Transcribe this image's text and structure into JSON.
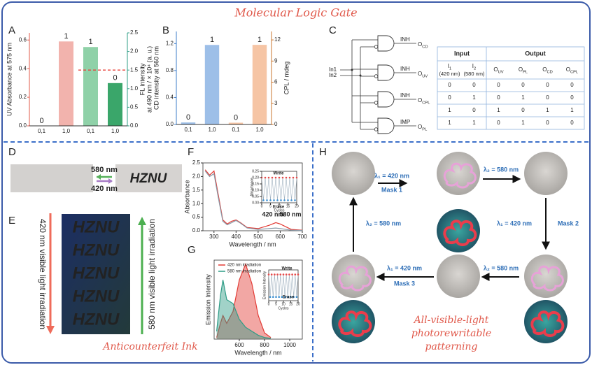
{
  "title": "Molecular Logic Gate",
  "panel_letters": [
    "A",
    "B",
    "C",
    "D",
    "E",
    "F",
    "G",
    "H"
  ],
  "chart_data": [
    {
      "panel": "A",
      "type": "bar",
      "y_label": "UV Absorbance at 575 nm",
      "y2_label": [
        "FL intensity",
        "at 490 nm / × 10⁴ (a. u.)"
      ],
      "categories": [
        "0,1",
        "1,0",
        "0,1",
        "1,0"
      ],
      "ylim": [
        0,
        0.65
      ],
      "yticks": [
        {
          "value": 0,
          "label": "0.0"
        },
        0.2,
        0.4,
        0.6
      ],
      "y2lim": [
        0,
        2.5
      ],
      "y2ticks": [
        {
          "value": 0,
          "label": "0.0"
        },
        0.5,
        {
          "value": 1,
          "label": "1.0"
        },
        1.5,
        {
          "value": 2,
          "label": "2.0"
        },
        2.5
      ],
      "series": [
        {
          "color": "#f2b3ad",
          "values": [
            0,
            0.59,
            null,
            null
          ]
        },
        {
          "axis": "y2",
          "color": "#8fd1a8",
          "values": [
            null,
            null,
            2.12,
            null
          ]
        },
        {
          "axis": "y2",
          "color": "#3aa66a",
          "values": [
            null,
            null,
            null,
            1.15
          ]
        }
      ],
      "logic_outputs": [
        "0",
        "1",
        "1",
        "0"
      ],
      "threshold": {
        "axis": "y2",
        "value": 1.5,
        "color": "#e8413a"
      },
      "y_color": "#e0584a",
      "y2_color": "#2e9c86"
    },
    {
      "panel": "B",
      "type": "bar",
      "y_label": "CD intensity at 560 nm",
      "y2_label": [
        "CPL / mdeg"
      ],
      "categories": [
        "0,1",
        "1,0",
        "0,1",
        "1,0"
      ],
      "ylim": [
        0,
        1.38
      ],
      "yticks": [
        {
          "value": 0,
          "label": "0.0"
        },
        0.4,
        0.8,
        1.2
      ],
      "y2lim": [
        0,
        13.2
      ],
      "y2ticks": [
        0,
        3,
        6,
        9,
        12
      ],
      "series": [
        {
          "color": "#9dbfe8",
          "values": [
            0.03,
            1.18,
            null,
            null
          ]
        },
        {
          "axis": "y2",
          "color": "#f6c5a5",
          "values": [
            null,
            null,
            0.25,
            11.3
          ]
        }
      ],
      "logic_outputs": [
        "0",
        "1",
        "0",
        "1"
      ],
      "y_color": "#3d7cc9",
      "y2_color": "#c8742c"
    },
    {
      "panel": "F",
      "type": "line",
      "x_label": "Wavelength / nm",
      "y_label": "Absorbance",
      "xlim": [
        250,
        700
      ],
      "xticks": [
        300,
        400,
        500,
        600,
        700
      ],
      "ylim": [
        0,
        2.5
      ],
      "yticks": [
        {
          "value": 0,
          "label": "0.0"
        },
        0.5,
        {
          "value": 1,
          "label": "1.0"
        },
        1.5,
        {
          "value": 2,
          "label": "2.0"
        },
        2.5
      ],
      "x": [
        260,
        280,
        300,
        320,
        340,
        360,
        380,
        400,
        420,
        450,
        500,
        550,
        580,
        600,
        650,
        700
      ],
      "series": [
        {
          "color": "#e23b35",
          "values": [
            2.25,
            2.05,
            2.2,
            1.3,
            0.4,
            0.25,
            0.35,
            0.4,
            0.3,
            0.12,
            0.08,
            0.2,
            0.3,
            0.25,
            0.05,
            0.02
          ]
        },
        {
          "color": "#8a9aa8",
          "values": [
            2.2,
            2.0,
            2.1,
            1.2,
            0.35,
            0.22,
            0.3,
            0.38,
            0.28,
            0.1,
            0.05,
            0.08,
            0.1,
            0.08,
            0.02,
            0.01
          ]
        }
      ],
      "annotations": [
        {
          "text": "420 nm",
          "color": "#3a6fc4"
        },
        {
          "text": "580 nm",
          "color": "#e0413a"
        }
      ]
    },
    {
      "panel": "F inset",
      "type": "line",
      "x_label": "Cycles",
      "y_label": "Absorbance",
      "xlim": [
        0,
        20
      ],
      "xticks": [
        0,
        5,
        10,
        15,
        20
      ],
      "ylim": [
        0,
        0.25
      ],
      "yticks": [
        {
          "value": 0,
          "label": "0.00"
        },
        0.05,
        {
          "value": 0.1,
          "label": "0.10"
        },
        0.15,
        {
          "value": 0.2,
          "label": "0.20"
        },
        0.25
      ],
      "x": [
        0,
        1,
        2,
        3,
        4,
        5,
        6,
        7,
        8,
        9,
        10,
        11,
        12,
        13,
        14,
        15,
        16,
        17,
        18,
        19,
        20
      ],
      "series": [
        {
          "color": "#9fb0bf",
          "marker_colors": [
            "#e84a4a",
            "#3a8fd1"
          ],
          "values": [
            0.2,
            0.02,
            0.2,
            0.02,
            0.2,
            0.02,
            0.2,
            0.02,
            0.2,
            0.02,
            0.2,
            0.02,
            0.2,
            0.02,
            0.2,
            0.02,
            0.2,
            0.02,
            0.2,
            0.02,
            0.2
          ]
        }
      ],
      "annotations": [
        {
          "text": "Write",
          "color": "#e0413a"
        },
        {
          "text": "Erase",
          "color": "#2f7fc9"
        }
      ]
    },
    {
      "panel": "G",
      "type": "line",
      "fill_area": true,
      "x_label": "Wavelength / nm",
      "y_label": "Emission Intensity",
      "xlim": [
        400,
        1100
      ],
      "xticks": [
        600,
        800,
        1000
      ],
      "ylim": [
        0,
        1
      ],
      "legend": "top-left",
      "x": [
        420,
        450,
        470,
        500,
        550,
        600,
        650,
        700,
        750,
        800,
        850
      ],
      "series": [
        {
          "name": "420 nm irradiation",
          "color": "#e23b35",
          "values": [
            0.02,
            0.2,
            0.3,
            0.2,
            0.35,
            0.75,
            0.95,
            0.7,
            0.3,
            0.08,
            0.02
          ]
        },
        {
          "name": "580 nm irradiation",
          "color": "#2e9c86",
          "values": [
            0.1,
            0.55,
            0.75,
            0.5,
            0.45,
            0.25,
            0.15,
            0.1,
            0.05,
            0.02,
            0.01
          ]
        }
      ]
    },
    {
      "panel": "G inset",
      "type": "line",
      "x_label": "Cycles",
      "y_label": "Emission Intensity",
      "xlim": [
        0,
        20
      ],
      "xticks": [
        0,
        5,
        10,
        15,
        20
      ],
      "ylim": [
        0,
        1
      ],
      "x": [
        0,
        1,
        2,
        3,
        4,
        5,
        6,
        7,
        8,
        9,
        10,
        11,
        12,
        13,
        14,
        15,
        16,
        17,
        18,
        19,
        20
      ],
      "series": [
        {
          "color": "#9fb0bf",
          "marker_colors": [
            "#e84a4a",
            "#3a8fd1"
          ],
          "values": [
            0.85,
            0.12,
            0.85,
            0.12,
            0.85,
            0.12,
            0.85,
            0.12,
            0.85,
            0.12,
            0.85,
            0.12,
            0.85,
            0.12,
            0.85,
            0.12,
            0.85,
            0.12,
            0.85,
            0.12,
            0.85
          ]
        }
      ],
      "annotations": [
        {
          "text": "Write",
          "color": "#e0413a"
        },
        {
          "text": "Erase",
          "color": "#2f7fc9"
        }
      ]
    }
  ],
  "logic_gate": {
    "inputs": [
      "In1",
      "In2"
    ],
    "nodes": [
      {
        "label": "INH",
        "output": {
          "base": "O",
          "sub": "CD"
        }
      },
      {
        "label": "INH",
        "output": {
          "base": "O",
          "sub": "UV"
        }
      },
      {
        "label": "INH",
        "output": {
          "base": "O",
          "sub": "CPL"
        }
      },
      {
        "label": "IMP",
        "output": {
          "base": "O",
          "sub": "PL"
        }
      }
    ]
  },
  "truth_table": {
    "groups": [
      "Input",
      "Output"
    ],
    "columns": [
      {
        "base": "I",
        "sub": "1",
        "note": "(420 nm)"
      },
      {
        "base": "I",
        "sub": "2",
        "note": "(580 nm)"
      },
      {
        "base": "O",
        "sub": "UV"
      },
      {
        "base": "O",
        "sub": "PL"
      },
      {
        "base": "O",
        "sub": "CD"
      },
      {
        "base": "O",
        "sub": "CPL"
      }
    ],
    "rows": [
      [
        0,
        0,
        0,
        0,
        0,
        0
      ],
      [
        0,
        1,
        0,
        1,
        0,
        0
      ],
      [
        1,
        0,
        1,
        0,
        1,
        1
      ],
      [
        1,
        1,
        0,
        1,
        0,
        0
      ]
    ]
  },
  "panel_d": {
    "forward": "580 nm",
    "backward": "420 nm",
    "text": "HZNU"
  },
  "panel_e": {
    "left_label": "420 nm visible light irradiation",
    "right_label": "580 nm visible light irradiation",
    "rows": [
      "HZNU",
      "HZNU",
      "HZNU",
      "HZNU",
      "HZNU"
    ]
  },
  "section_left": "Anticounterfeit Ink",
  "panel_h": {
    "steps": [
      {
        "light": "λ₁ = 420 nm",
        "mask": "Mask 1"
      },
      {
        "light": "λ₂ = 580 nm"
      },
      {
        "light": "λ₁ = 420 nm",
        "mask": "Mask 2"
      },
      {
        "light": "λ₂ = 580 nm"
      },
      {
        "light": "λ₁ = 420 nm",
        "mask": "Mask 3"
      },
      {
        "light": "λ₂ = 580 nm"
      }
    ],
    "caption": [
      "All-visible-light",
      "photorewritable",
      "patterning"
    ]
  }
}
